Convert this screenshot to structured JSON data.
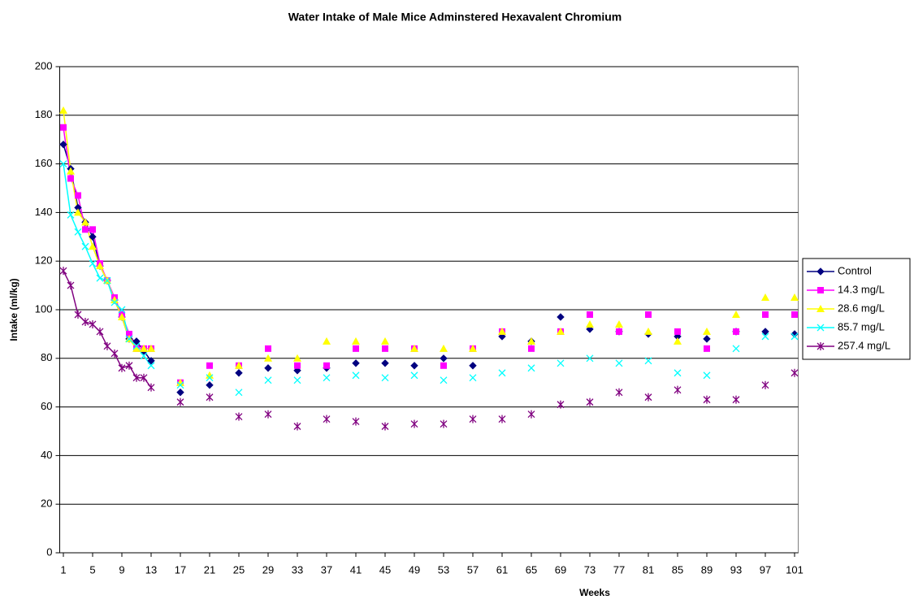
{
  "chart_data": {
    "type": "line",
    "title": "Water Intake of Male Mice Adminstered Hexavalent Chromium",
    "x_label": "Weeks",
    "y_label": "Intake (ml/kg)",
    "x": [
      1,
      2,
      3,
      4,
      5,
      6,
      7,
      8,
      9,
      10,
      11,
      12,
      13,
      14,
      15,
      16,
      17,
      18,
      19,
      20,
      21,
      22,
      23,
      24,
      25,
      26,
      27,
      28,
      29,
      30,
      31,
      32,
      33,
      34,
      35,
      36,
      37,
      38,
      39,
      40,
      41,
      42,
      43,
      44,
      45,
      46,
      47,
      48,
      49,
      50,
      51,
      52,
      53,
      54,
      55,
      56,
      57,
      58,
      59,
      60,
      61,
      62,
      63,
      64,
      65,
      66,
      67,
      68,
      69,
      70,
      71,
      72,
      73,
      74,
      75,
      76,
      77,
      78,
      79,
      80,
      81,
      82,
      83,
      84,
      85,
      86,
      87,
      88,
      89,
      90,
      91,
      92,
      93,
      94,
      95,
      96,
      97,
      98,
      99,
      100,
      101
    ],
    "xlim": [
      0.5,
      101.5
    ],
    "xticks": [
      1,
      5,
      9,
      13,
      17,
      21,
      25,
      29,
      33,
      37,
      41,
      45,
      49,
      53,
      57,
      61,
      65,
      69,
      73,
      77,
      81,
      85,
      89,
      93,
      97,
      101
    ],
    "ylim": [
      0,
      200
    ],
    "yticks": [
      0,
      20,
      40,
      60,
      80,
      100,
      120,
      140,
      160,
      180,
      200
    ],
    "grid": true,
    "legend": "right",
    "series": [
      {
        "name": "Control",
        "color": "#000080",
        "marker": "diamond",
        "values": [
          168,
          158,
          142,
          136,
          130,
          118,
          112,
          104,
          97,
          88,
          87,
          83,
          79,
          null,
          null,
          null,
          66,
          null,
          null,
          null,
          69,
          null,
          null,
          null,
          74,
          null,
          null,
          null,
          76,
          null,
          null,
          null,
          75,
          null,
          null,
          null,
          76,
          null,
          null,
          null,
          78,
          null,
          null,
          null,
          78,
          null,
          null,
          null,
          77,
          null,
          null,
          null,
          80,
          null,
          null,
          null,
          77,
          null,
          null,
          null,
          89,
          null,
          null,
          null,
          87,
          null,
          null,
          null,
          97,
          null,
          null,
          null,
          92,
          null,
          null,
          null,
          91,
          null,
          null,
          null,
          90,
          null,
          null,
          null,
          89,
          null,
          null,
          null,
          88,
          null,
          null,
          null,
          91,
          null,
          null,
          null,
          91,
          null,
          null,
          null,
          90
        ]
      },
      {
        "name": "14.3 mg/L",
        "color": "#ff00ff",
        "marker": "square",
        "values": [
          175,
          154,
          147,
          133,
          133,
          119,
          112,
          105,
          98,
          90,
          84,
          84,
          84,
          null,
          null,
          null,
          70,
          null,
          null,
          null,
          77,
          null,
          null,
          null,
          77,
          null,
          null,
          null,
          84,
          null,
          null,
          null,
          77,
          null,
          null,
          null,
          77,
          null,
          null,
          null,
          84,
          null,
          null,
          null,
          84,
          null,
          null,
          null,
          84,
          null,
          null,
          null,
          77,
          null,
          null,
          null,
          84,
          null,
          null,
          null,
          91,
          null,
          null,
          null,
          84,
          null,
          null,
          null,
          91,
          null,
          null,
          null,
          98,
          null,
          null,
          null,
          91,
          null,
          null,
          null,
          98,
          null,
          null,
          null,
          91,
          null,
          null,
          null,
          84,
          null,
          null,
          null,
          91,
          null,
          null,
          null,
          98,
          null,
          null,
          null,
          98
        ]
      },
      {
        "name": "28.6 mg/L",
        "color": "#ffff00",
        "marker": "triangle",
        "values": [
          182,
          157,
          140,
          136,
          126,
          118,
          112,
          104,
          97,
          88,
          84,
          84,
          84,
          null,
          null,
          null,
          70,
          null,
          null,
          null,
          73,
          null,
          null,
          null,
          77,
          null,
          null,
          null,
          80,
          null,
          null,
          null,
          80,
          null,
          null,
          null,
          87,
          null,
          null,
          null,
          87,
          null,
          null,
          null,
          87,
          null,
          null,
          null,
          84,
          null,
          null,
          null,
          84,
          null,
          null,
          null,
          84,
          null,
          null,
          null,
          91,
          null,
          null,
          null,
          87,
          null,
          null,
          null,
          91,
          null,
          null,
          null,
          94,
          null,
          null,
          null,
          94,
          null,
          null,
          null,
          91,
          null,
          null,
          null,
          87,
          null,
          null,
          null,
          91,
          null,
          null,
          null,
          98,
          null,
          null,
          null,
          105,
          null,
          null,
          null,
          105
        ]
      },
      {
        "name": "85.7 mg/L",
        "color": "#00ffff",
        "marker": "x",
        "values": [
          160,
          139,
          132,
          126,
          119,
          113,
          112,
          103,
          100,
          88,
          85,
          81,
          77,
          null,
          null,
          null,
          69,
          null,
          null,
          null,
          72,
          null,
          null,
          null,
          66,
          null,
          null,
          null,
          71,
          null,
          null,
          null,
          71,
          null,
          null,
          null,
          72,
          null,
          null,
          null,
          73,
          null,
          null,
          null,
          72,
          null,
          null,
          null,
          73,
          null,
          null,
          null,
          71,
          null,
          null,
          null,
          72,
          null,
          null,
          null,
          74,
          null,
          null,
          null,
          76,
          null,
          null,
          null,
          78,
          null,
          null,
          null,
          80,
          null,
          null,
          null,
          78,
          null,
          null,
          null,
          79,
          null,
          null,
          null,
          74,
          null,
          null,
          null,
          73,
          null,
          null,
          null,
          84,
          null,
          null,
          null,
          89,
          null,
          null,
          null,
          89
        ]
      },
      {
        "name": "257.4 mg/L",
        "color": "#800080",
        "marker": "star",
        "values": [
          116,
          110,
          98,
          95,
          94,
          91,
          85,
          82,
          76,
          77,
          72,
          72,
          68,
          null,
          null,
          null,
          62,
          null,
          null,
          null,
          64,
          null,
          null,
          null,
          56,
          null,
          null,
          null,
          57,
          null,
          null,
          null,
          52,
          null,
          null,
          null,
          55,
          null,
          null,
          null,
          54,
          null,
          null,
          null,
          52,
          null,
          null,
          null,
          53,
          null,
          null,
          null,
          53,
          null,
          null,
          null,
          55,
          null,
          null,
          null,
          55,
          null,
          null,
          null,
          57,
          null,
          null,
          null,
          61,
          null,
          null,
          null,
          62,
          null,
          null,
          null,
          66,
          null,
          null,
          null,
          64,
          null,
          null,
          null,
          67,
          null,
          null,
          null,
          63,
          null,
          null,
          null,
          63,
          null,
          null,
          null,
          69,
          null,
          null,
          null,
          74
        ]
      }
    ]
  }
}
